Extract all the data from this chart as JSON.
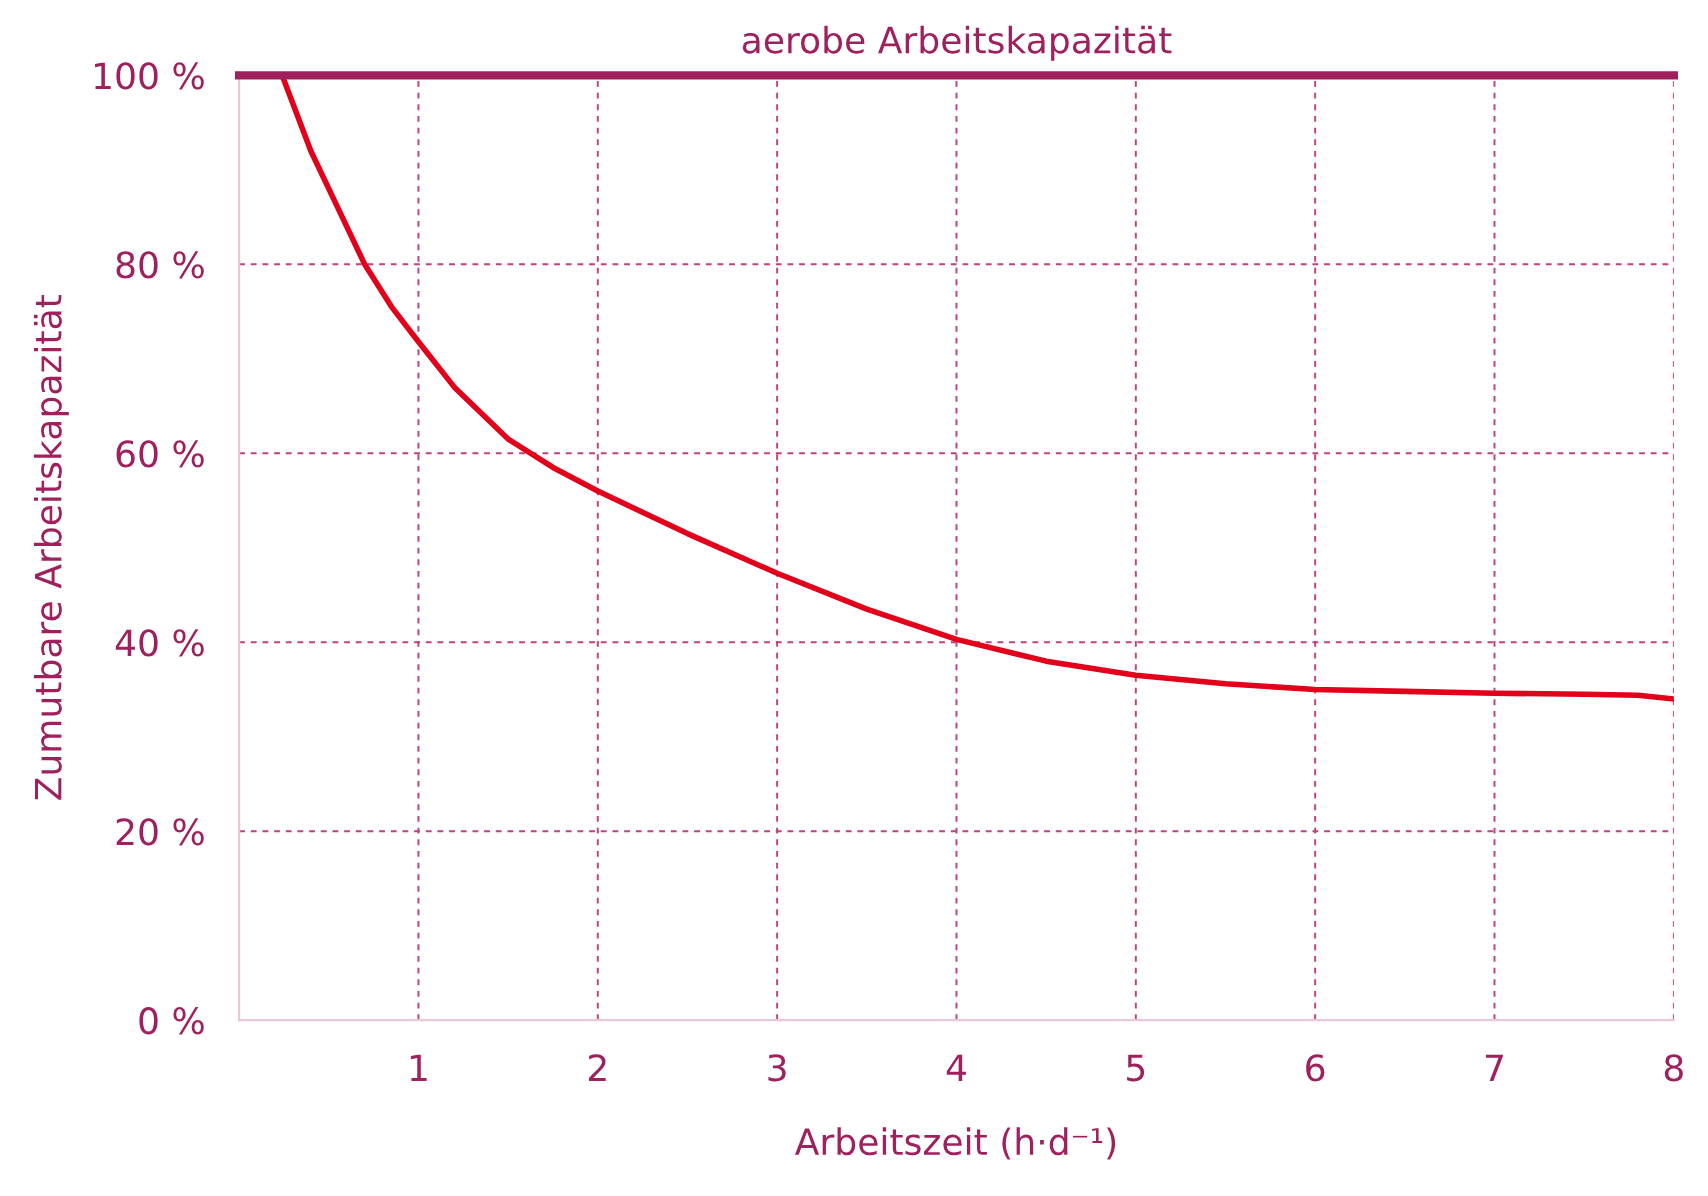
{
  "chart_data": {
    "type": "line",
    "title": "aerobe Arbeitskapazität",
    "xlabel": "Arbeitszeit (h·d⁻¹)",
    "ylabel": "Zumutbare Arbeitskapazität",
    "x": [
      0.24,
      0.4,
      0.55,
      0.7,
      0.85,
      1.0,
      1.2,
      1.5,
      1.75,
      2.0,
      2.5,
      3.0,
      3.5,
      4.0,
      4.5,
      5.0,
      5.5,
      6.0,
      6.5,
      7.0,
      7.5,
      7.8,
      8.0
    ],
    "series": [
      {
        "color": "#e2001a",
        "values": [
          100,
          92,
          86,
          80,
          75.5,
          71.8,
          67,
          61.5,
          58.5,
          56,
          51.5,
          47.3,
          43.5,
          40.3,
          38,
          36.5,
          35.6,
          35,
          34.8,
          34.6,
          34.5,
          34.4,
          34
        ]
      }
    ],
    "xlim": [
      0,
      8
    ],
    "ylim": [
      0,
      100
    ],
    "xticks": [
      1,
      2,
      3,
      4,
      5,
      6,
      7,
      8
    ],
    "yticks": [
      {
        "value": 0,
        "label": "0 %"
      },
      {
        "value": 20,
        "label": "20 %"
      },
      {
        "value": 40,
        "label": "40 %"
      },
      {
        "value": 60,
        "label": "60 %"
      },
      {
        "value": 80,
        "label": "80 %"
      },
      {
        "value": 100,
        "label": "100 %"
      }
    ],
    "ref_lines": [
      {
        "axis": "y",
        "value": 100,
        "color": "#a0205e"
      }
    ],
    "grid": true,
    "line_style": "solid",
    "marker": "none"
  }
}
